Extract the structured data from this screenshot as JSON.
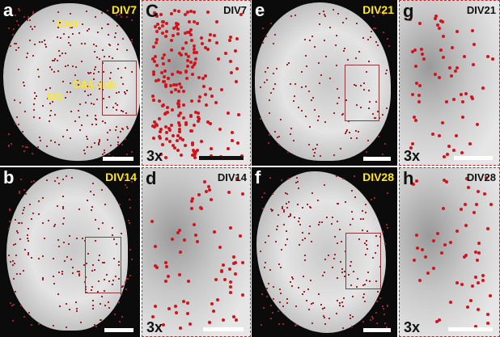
{
  "panels": [
    {
      "id": "a",
      "label": "a",
      "condition": "DIV7",
      "type": "overview",
      "regions": [
        "CA3",
        "DG",
        "CA1-sub"
      ]
    },
    {
      "id": "c",
      "label": "C",
      "condition": "DIV7",
      "type": "zoom",
      "magnification": "3x"
    },
    {
      "id": "b",
      "label": "b",
      "condition": "DIV14",
      "type": "overview"
    },
    {
      "id": "d",
      "label": "d",
      "condition": "DIV14",
      "type": "zoom",
      "magnification": "3x"
    },
    {
      "id": "e",
      "label": "e",
      "condition": "DIV21",
      "type": "overview"
    },
    {
      "id": "g",
      "label": "g",
      "condition": "DIV21",
      "type": "zoom",
      "magnification": "3x"
    },
    {
      "id": "f",
      "label": "f",
      "condition": "DIV28",
      "type": "overview"
    },
    {
      "id": "h",
      "label": "h",
      "condition": "DIV28",
      "type": "zoom",
      "magnification": "3x"
    }
  ],
  "colors": {
    "label_overview": "#ffe81a",
    "marker": "#d4141c",
    "inset_border": "#c0282a",
    "roi_box": "#8a3a3f"
  }
}
